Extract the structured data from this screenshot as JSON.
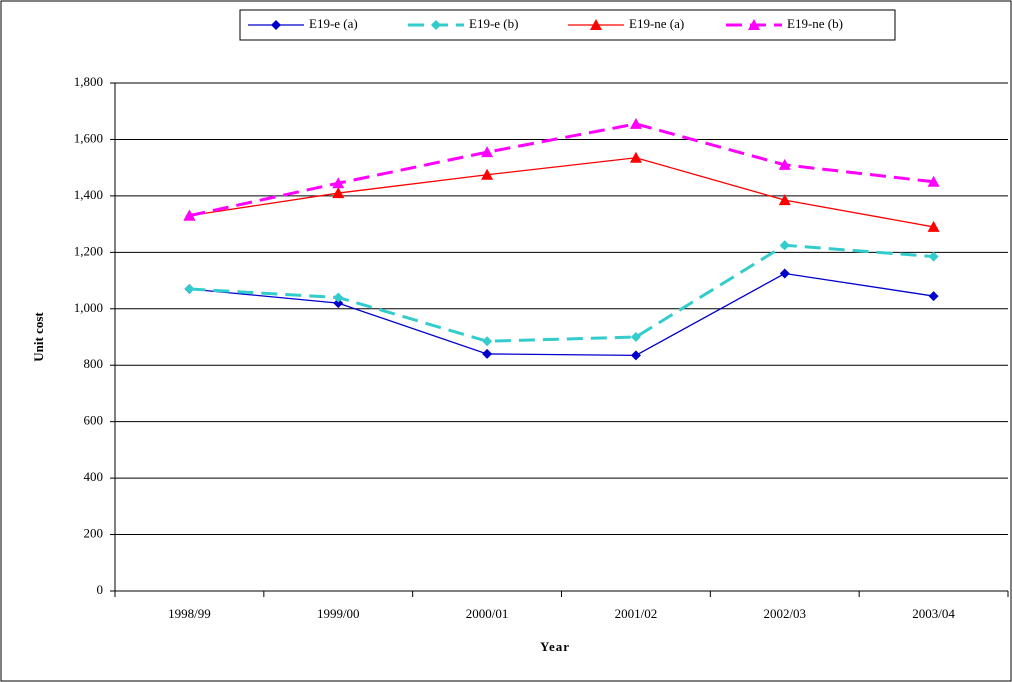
{
  "chart_data": {
    "type": "line",
    "x_label": "Year",
    "y_label": "Unit cost",
    "categories": [
      "1998/99",
      "1999/00",
      "2000/01",
      "2001/02",
      "2002/03",
      "2003/04"
    ],
    "series": [
      {
        "name": "E19-e (a)",
        "color": "#0000cc",
        "marker": "diamond",
        "dashed": false,
        "values": [
          1070,
          1020,
          840,
          835,
          1125,
          1045
        ]
      },
      {
        "name": "E19-e (b)",
        "color": "#33cccc",
        "marker": "diamond",
        "dashed": true,
        "values": [
          1070,
          1040,
          885,
          900,
          1225,
          1185
        ]
      },
      {
        "name": "E19-ne (a)",
        "color": "#ff0000",
        "marker": "triangle",
        "dashed": false,
        "values": [
          1330,
          1410,
          1475,
          1535,
          1385,
          1290
        ]
      },
      {
        "name": "E19-ne (b)",
        "color": "#ff00ff",
        "marker": "triangle",
        "dashed": true,
        "values": [
          1330,
          1445,
          1555,
          1655,
          1510,
          1450
        ]
      }
    ],
    "ylim": [
      0,
      1800
    ],
    "yticks": [
      0,
      200,
      400,
      600,
      800,
      {
        "value": 1000,
        "label": "1,000"
      },
      {
        "value": 1200,
        "label": "1,200"
      },
      {
        "value": 1400,
        "label": "1,400"
      },
      {
        "value": 1600,
        "label": "1,600"
      },
      {
        "value": 1800,
        "label": "1,800"
      }
    ],
    "grid": true,
    "legend": "top"
  }
}
